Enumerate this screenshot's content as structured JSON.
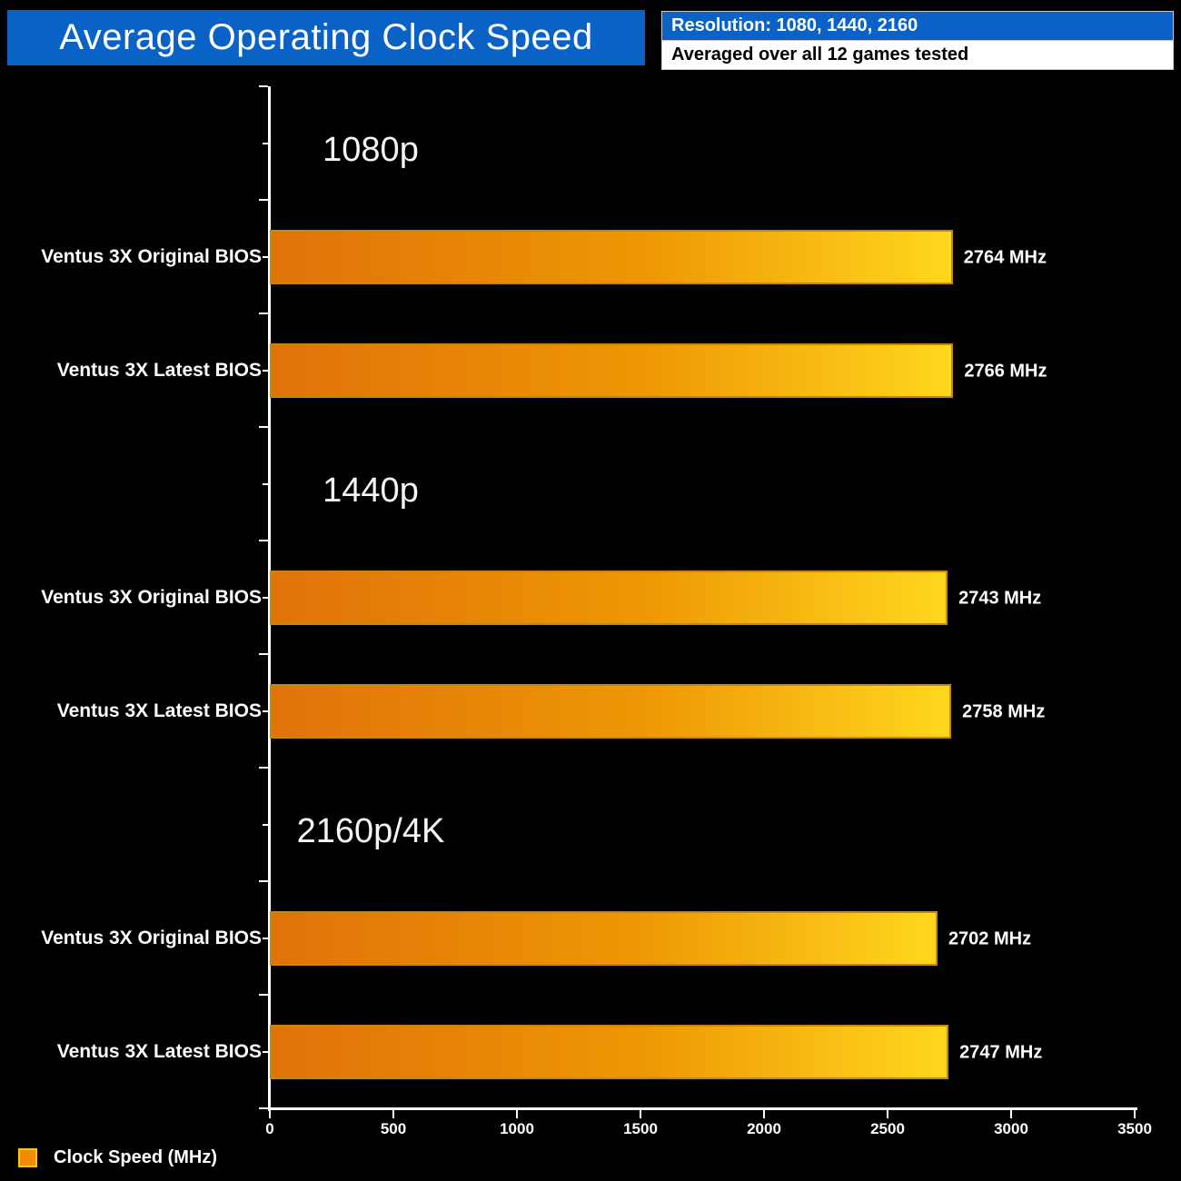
{
  "title": "Average Operating Clock Speed",
  "header": {
    "resolution": "Resolution: 1080, 1440, 2160",
    "subtitle": "Averaged over all 12 games tested"
  },
  "legend": {
    "label": "Clock Speed (MHz)"
  },
  "colors": {
    "background": "#000000",
    "accent_blue": "#0b62c6",
    "bar_gradient_start": "#e0720a",
    "bar_gradient_end": "#ffd71e",
    "bar_border": "#c8860a",
    "axis": "#ffffff",
    "text": "#ffffff"
  },
  "chart_data": {
    "type": "bar",
    "orientation": "horizontal",
    "title": "Average Operating Clock Speed",
    "xlabel": "",
    "ylabel": "",
    "unit": "MHz",
    "xlim": [
      0,
      3500
    ],
    "x_ticks": [
      "0",
      "500",
      "1000",
      "1500",
      "2000",
      "2500",
      "3000",
      "3500"
    ],
    "grid": false,
    "legend_position": "bottom-left",
    "series": [
      {
        "name": "Clock Speed (MHz)"
      }
    ],
    "sections": [
      {
        "label": "1080p",
        "bars": [
          {
            "category": "Ventus 3X Original BIOS",
            "value": 2764,
            "value_label": "2764 MHz"
          },
          {
            "category": "Ventus 3X Latest BIOS",
            "value": 2766,
            "value_label": "2766 MHz"
          }
        ]
      },
      {
        "label": "1440p",
        "bars": [
          {
            "category": "Ventus 3X Original BIOS",
            "value": 2743,
            "value_label": "2743 MHz"
          },
          {
            "category": "Ventus 3X Latest BIOS",
            "value": 2758,
            "value_label": "2758 MHz"
          }
        ]
      },
      {
        "label": "2160p/4K",
        "bars": [
          {
            "category": "Ventus 3X Original BIOS",
            "value": 2702,
            "value_label": "2702 MHz"
          },
          {
            "category": "Ventus 3X Latest BIOS",
            "value": 2747,
            "value_label": "2747 MHz"
          }
        ]
      }
    ]
  }
}
